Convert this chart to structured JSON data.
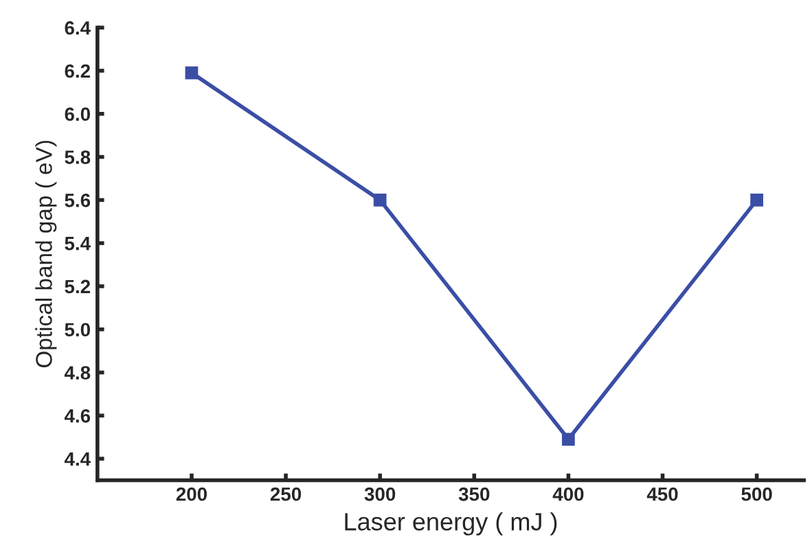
{
  "chart_data": {
    "type": "line",
    "xlabel": "Laser energy ( mJ )",
    "ylabel": "Optical band gap ( eV)",
    "x": [
      200,
      300,
      400,
      500
    ],
    "series": [
      {
        "color": "#3b4ea6",
        "values": [
          6.19,
          5.6,
          4.49,
          5.6
        ]
      }
    ],
    "xlim": [
      150,
      525
    ],
    "xticks": [
      200,
      250,
      300,
      350,
      400,
      450,
      500
    ],
    "ylim": [
      4.3,
      6.4
    ],
    "yticks": [
      {
        "value": 4.4,
        "label": "4.4"
      },
      {
        "value": 4.6,
        "label": "4.6"
      },
      {
        "value": 4.8,
        "label": "4.8"
      },
      {
        "value": 5.0,
        "label": "5.0"
      },
      {
        "value": 5.2,
        "label": "5.2"
      },
      {
        "value": 5.4,
        "label": "5.4"
      },
      {
        "value": 5.6,
        "label": "5.6"
      },
      {
        "value": 5.8,
        "label": "5.8"
      },
      {
        "value": 6.0,
        "label": "6.0"
      },
      {
        "value": 6.2,
        "label": "6.2"
      },
      {
        "value": 6.4,
        "label": "6.4"
      }
    ],
    "marker": "square",
    "line_style": "solid",
    "grid": false,
    "legend": false
  }
}
